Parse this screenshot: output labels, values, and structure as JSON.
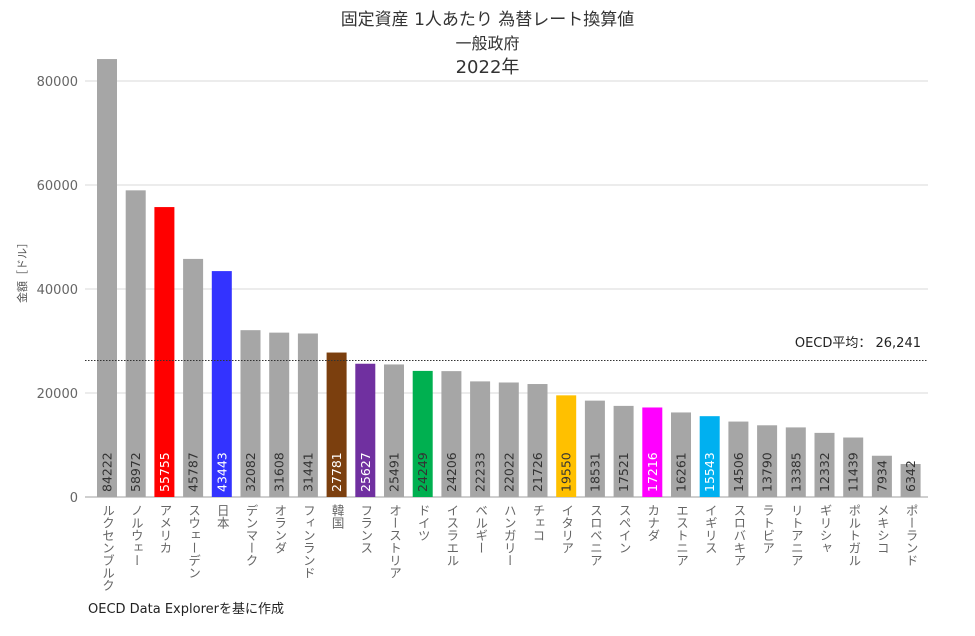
{
  "chart_data": {
    "type": "bar",
    "title": "固定資産 1人あたり 為替レート換算値",
    "subtitle": "一般政府",
    "year": "2022年",
    "ylabel": "金額［ドル］",
    "xlabel": "",
    "ylim": [
      0,
      80000
    ],
    "yticks": [
      0,
      20000,
      40000,
      60000,
      80000
    ],
    "grid": true,
    "categories": [
      "ルクセンブルク",
      "ノルウェー",
      "アメリカ",
      "スウェーデン",
      "日本",
      "デンマーク",
      "オランダ",
      "フィンランド",
      "韓国",
      "フランス",
      "オーストリア",
      "ドイツ",
      "イスラエル",
      "ベルギー",
      "ハンガリー",
      "チェコ",
      "イタリア",
      "スロベニア",
      "スペイン",
      "カナダ",
      "エストニア",
      "イギリス",
      "スロバキア",
      "ラトビア",
      "リトアニア",
      "ギリシャ",
      "ポルトガル",
      "メキシコ",
      "ポーランド"
    ],
    "values": [
      84222,
      58972,
      55755,
      45787,
      43443,
      32082,
      31608,
      31441,
      27781,
      25627,
      25491,
      24249,
      24206,
      22233,
      22022,
      21726,
      19550,
      18531,
      17521,
      17216,
      16261,
      15543,
      14506,
      13790,
      13385,
      12332,
      11439,
      7934,
      6342
    ],
    "colors": [
      "#a6a6a6",
      "#a6a6a6",
      "#ff0000",
      "#a6a6a6",
      "#3333ff",
      "#a6a6a6",
      "#a6a6a6",
      "#a6a6a6",
      "#7b3f0e",
      "#7030a0",
      "#a6a6a6",
      "#00b050",
      "#a6a6a6",
      "#a6a6a6",
      "#a6a6a6",
      "#a6a6a6",
      "#ffc000",
      "#a6a6a6",
      "#a6a6a6",
      "#ff00ff",
      "#a6a6a6",
      "#00b0f0",
      "#a6a6a6",
      "#a6a6a6",
      "#a6a6a6",
      "#a6a6a6",
      "#a6a6a6",
      "#a6a6a6",
      "#a6a6a6"
    ],
    "label_colors_light": [
      "アメリカ",
      "日本",
      "韓国",
      "フランス",
      "カナダ",
      "イギリス"
    ],
    "reference_line": {
      "label": "OECD平均： 26,241",
      "value": 26241
    }
  },
  "source": "OECD Data Explorerを基に作成"
}
